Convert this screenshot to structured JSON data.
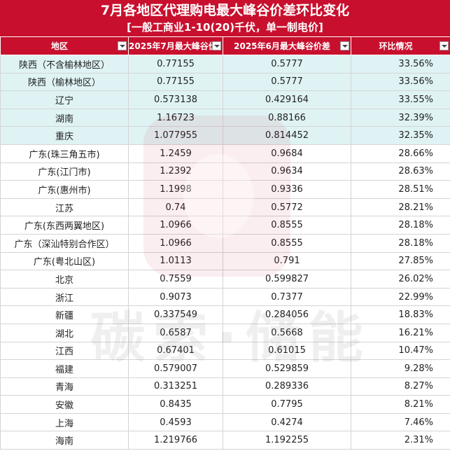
{
  "title": {
    "main": "7月各地区代理购电最大峰谷价差环比变化",
    "sub": "[一般工商业1-10(20)千伏，单一制电价]"
  },
  "watermark": {
    "text": "碳索·储能"
  },
  "table": {
    "headers": [
      "地区",
      "2025年7月最大峰谷价",
      "2025年6月最大峰谷价差",
      "环比情况"
    ],
    "rows": [
      {
        "region": "陕西（不含榆林地区）",
        "jul": "0.77155",
        "jun": "0.5777",
        "mom": "33.56%",
        "highlight": true
      },
      {
        "region": "陕西（榆林地区）",
        "jul": "0.77155",
        "jun": "0.5777",
        "mom": "33.56%",
        "highlight": true
      },
      {
        "region": "辽宁",
        "jul": "0.573138",
        "jun": "0.429164",
        "mom": "33.55%",
        "highlight": true
      },
      {
        "region": "湖南",
        "jul": "1.16723",
        "jun": "0.88166",
        "mom": "32.39%",
        "highlight": true
      },
      {
        "region": "重庆",
        "jul": "1.077955",
        "jun": "0.814452",
        "mom": "32.35%",
        "highlight": true
      },
      {
        "region": "广东(珠三角五市)",
        "jul": "1.2459",
        "jun": "0.9684",
        "mom": "28.66%",
        "highlight": false
      },
      {
        "region": "广东(江门市)",
        "jul": "1.2392",
        "jun": "0.9634",
        "mom": "28.63%",
        "highlight": false
      },
      {
        "region": "广东(惠州市)",
        "jul": "1.1998",
        "jun": "0.9336",
        "mom": "28.51%",
        "highlight": false
      },
      {
        "region": "江苏",
        "jul": "0.74",
        "jun": "0.5772",
        "mom": "28.21%",
        "highlight": false
      },
      {
        "region": "广东(东西两翼地区)",
        "jul": "1.0966",
        "jun": "0.8555",
        "mom": "28.18%",
        "highlight": false
      },
      {
        "region": "广东（深汕特别合作区）",
        "jul": "1.0966",
        "jun": "0.8555",
        "mom": "28.18%",
        "highlight": false
      },
      {
        "region": "广东(粤北山区)",
        "jul": "1.0113",
        "jun": "0.791",
        "mom": "27.85%",
        "highlight": false
      },
      {
        "region": "北京",
        "jul": "0.7559",
        "jun": "0.599827",
        "mom": "26.02%",
        "highlight": false
      },
      {
        "region": "浙江",
        "jul": "0.9073",
        "jun": "0.7377",
        "mom": "22.99%",
        "highlight": false
      },
      {
        "region": "新疆",
        "jul": "0.337549",
        "jun": "0.284056",
        "mom": "18.83%",
        "highlight": false
      },
      {
        "region": "湖北",
        "jul": "0.6587",
        "jun": "0.5668",
        "mom": "16.21%",
        "highlight": false
      },
      {
        "region": "江西",
        "jul": "0.67401",
        "jun": "0.61015",
        "mom": "10.47%",
        "highlight": false
      },
      {
        "region": "福建",
        "jul": "0.579007",
        "jun": "0.529859",
        "mom": "9.28%",
        "highlight": false
      },
      {
        "region": "青海",
        "jul": "0.313251",
        "jun": "0.289336",
        "mom": "8.27%",
        "highlight": false
      },
      {
        "region": "安徽",
        "jul": "0.8435",
        "jun": "0.7795",
        "mom": "8.21%",
        "highlight": false
      },
      {
        "region": "上海",
        "jul": "0.4593",
        "jun": "0.4274",
        "mom": "7.46%",
        "highlight": false
      },
      {
        "region": "海南",
        "jul": "1.219766",
        "jun": "1.192255",
        "mom": "2.31%",
        "highlight": false
      }
    ]
  },
  "colors": {
    "header_bg": "#c8102e",
    "highlight_row": "#dff3f4",
    "grid": "#d4d4d4"
  },
  "icons": {
    "filter": "dropdown-filter-icon"
  }
}
